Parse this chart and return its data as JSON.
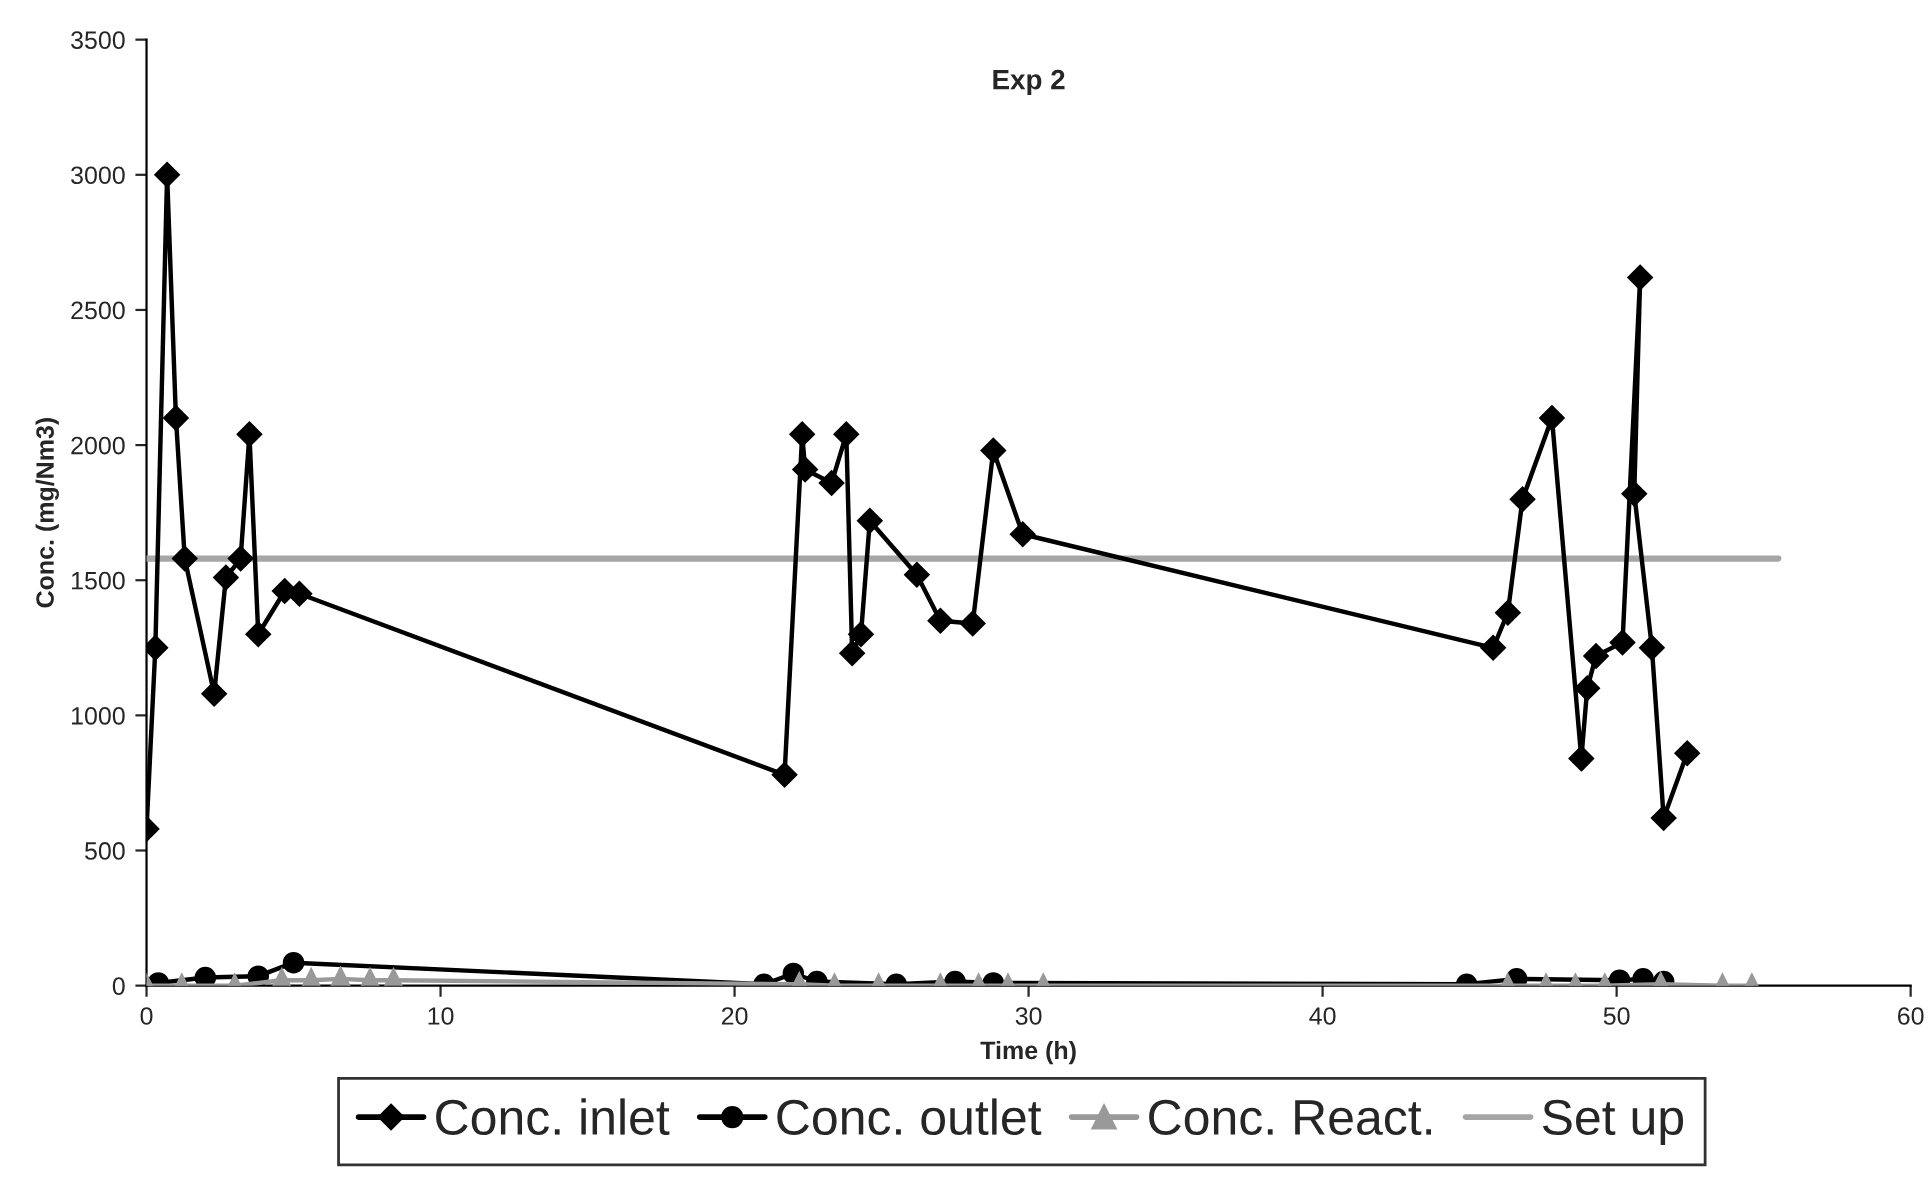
{
  "chart_data": {
    "type": "line",
    "title": "Exp 2",
    "xlabel": "Time (h)",
    "ylabel": "Conc. (mg/Nm3)",
    "xlim": [
      0,
      60
    ],
    "xticks": [
      0,
      10,
      20,
      30,
      40,
      50,
      60
    ],
    "ylim": [
      0,
      3500
    ],
    "yticks": [
      0,
      500,
      1000,
      1500,
      2000,
      2500,
      3000,
      3500
    ],
    "grid": false,
    "legend": "bottom",
    "line_style": "solid",
    "series": [
      {
        "name": "Conc. inlet",
        "color": "#000000",
        "marker": "diamond",
        "x": [
          0.0,
          0.3,
          0.7,
          1.0,
          1.3,
          2.3,
          2.7,
          3.2,
          3.5,
          3.8,
          4.7,
          5.2,
          21.7,
          22.3,
          22.4,
          23.3,
          23.8,
          24.0,
          24.3,
          24.6,
          26.2,
          27.0,
          28.1,
          28.8,
          29.8,
          45.8,
          46.3,
          46.8,
          47.8,
          48.8,
          49.0,
          49.3,
          50.2,
          50.8,
          50.6,
          51.2,
          51.6,
          52.4
        ],
        "values": [
          580,
          1250,
          3000,
          2100,
          1580,
          1080,
          1510,
          1580,
          2040,
          1300,
          1460,
          1450,
          780,
          2040,
          1910,
          1860,
          2040,
          1230,
          1300,
          1720,
          1520,
          1350,
          1340,
          1980,
          1670,
          1250,
          1380,
          1800,
          2100,
          840,
          1100,
          1220,
          1270,
          2620,
          1820,
          1250,
          620,
          860
        ]
      },
      {
        "name": "Conc. outlet",
        "color": "#000000",
        "marker": "circle",
        "x": [
          0.4,
          2.0,
          3.8,
          5.0,
          21.0,
          22.0,
          22.8,
          25.5,
          27.5,
          28.8,
          44.9,
          46.6,
          50.1,
          50.9,
          51.6
        ],
        "values": [
          10,
          30,
          35,
          85,
          5,
          45,
          15,
          5,
          15,
          10,
          5,
          25,
          20,
          25,
          15
        ]
      },
      {
        "name": "Conc. React.",
        "color": "#999999",
        "marker": "triangle",
        "x": [
          0.0,
          1.2,
          3.0,
          4.6,
          5.6,
          6.6,
          7.6,
          8.4,
          22.2,
          23.4,
          24.9,
          27.0,
          28.3,
          29.3,
          30.5,
          46.3,
          47.6,
          48.6,
          49.6,
          51.5,
          53.6,
          54.6
        ],
        "values": [
          0,
          0,
          0,
          20,
          20,
          25,
          20,
          20,
          5,
          0,
          0,
          0,
          0,
          0,
          0,
          0,
          0,
          0,
          0,
          5,
          0,
          0
        ]
      },
      {
        "name": "Set up",
        "color": "#a6a6a6",
        "marker": "none",
        "x": [
          0,
          55.5
        ],
        "values": [
          1580,
          1580
        ]
      }
    ]
  }
}
